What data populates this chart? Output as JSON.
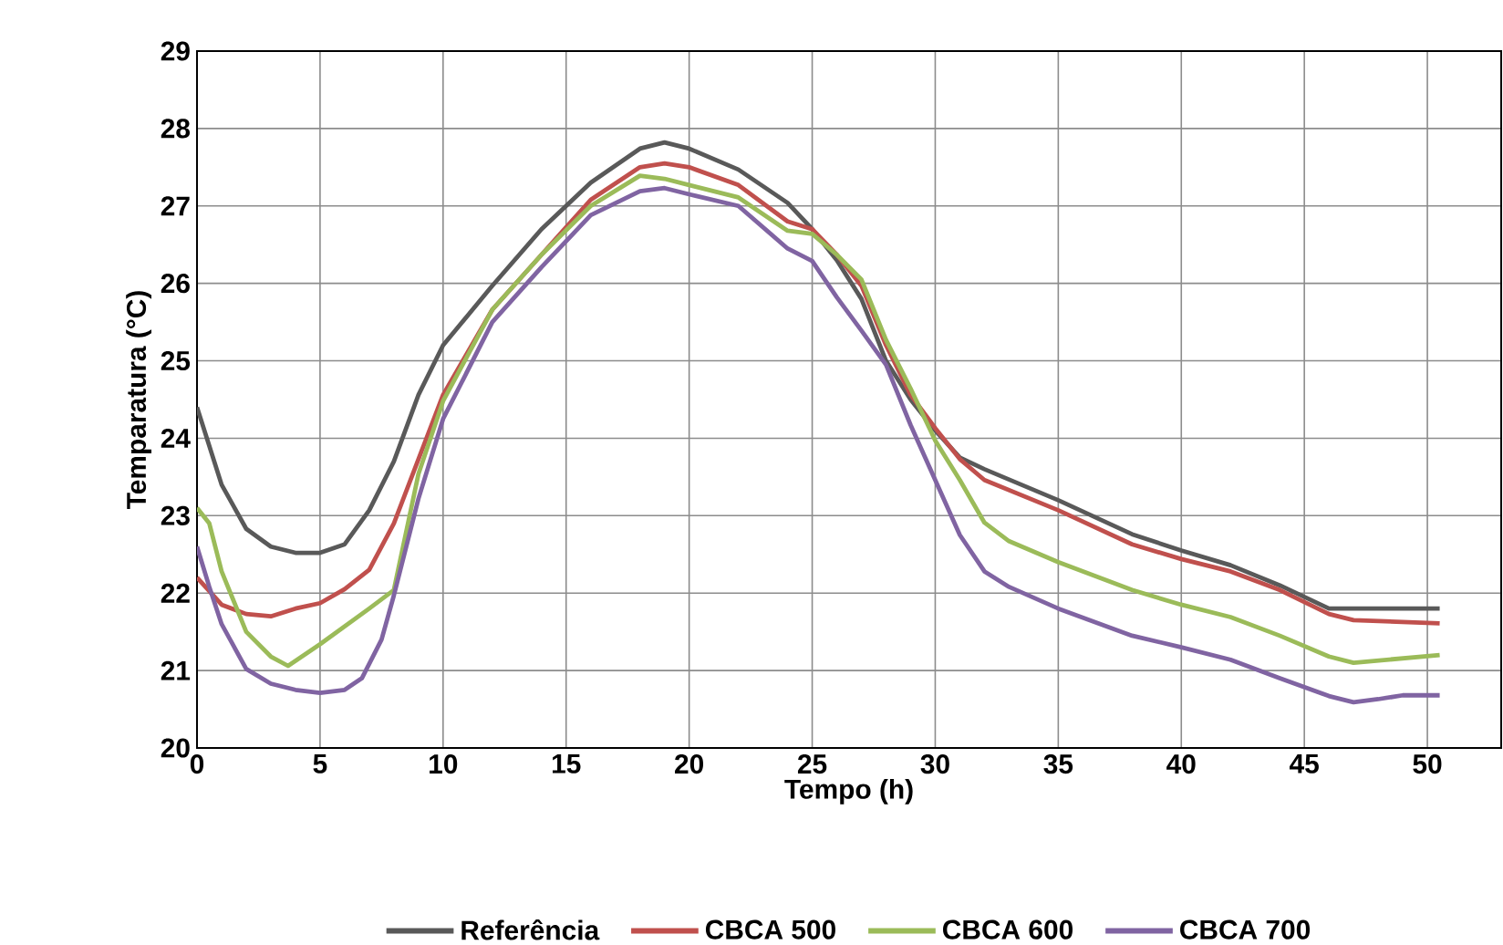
{
  "chart_data": {
    "type": "line",
    "xlabel": "Tempo (h)",
    "ylabel": "Temparatura (°C)",
    "xlim": [
      0,
      53
    ],
    "ylim": [
      20,
      29
    ],
    "xticks": [
      0,
      5,
      10,
      15,
      20,
      25,
      30,
      35,
      40,
      45,
      50
    ],
    "yticks": [
      20,
      21,
      22,
      23,
      24,
      25,
      26,
      27,
      28,
      29
    ],
    "grid": true,
    "legend": "bottom",
    "series": [
      {
        "name": "Referência",
        "color": "#595959",
        "x": [
          0,
          1,
          2,
          3,
          4,
          5,
          6,
          7,
          8,
          9,
          10,
          12,
          14,
          16,
          18,
          19,
          20,
          22,
          24,
          25,
          26,
          27,
          28,
          29,
          30,
          31,
          32,
          35,
          38,
          40,
          42,
          44,
          46,
          47,
          50.5
        ],
        "values": [
          24.4,
          23.4,
          22.83,
          22.6,
          22.52,
          22.52,
          22.63,
          23.07,
          23.7,
          24.56,
          25.2,
          25.97,
          26.7,
          27.3,
          27.74,
          27.82,
          27.74,
          27.47,
          27.04,
          26.7,
          26.3,
          25.8,
          25.0,
          24.5,
          24.1,
          23.75,
          23.6,
          23.2,
          22.76,
          22.55,
          22.36,
          22.1,
          21.8,
          21.8,
          21.8
        ]
      },
      {
        "name": "CBCA 500",
        "color": "#c0504d",
        "x": [
          0,
          1,
          2,
          3,
          4,
          5,
          6,
          7,
          8,
          9,
          10,
          12,
          14,
          16,
          18,
          19,
          20,
          22,
          24,
          25,
          26,
          27,
          28,
          29,
          30,
          31,
          32,
          35,
          38,
          40,
          42,
          44,
          46,
          47,
          50.5
        ],
        "values": [
          22.2,
          21.85,
          21.73,
          21.7,
          21.8,
          21.87,
          22.05,
          22.3,
          22.9,
          23.73,
          24.56,
          25.66,
          26.37,
          27.08,
          27.5,
          27.55,
          27.5,
          27.27,
          26.8,
          26.7,
          26.37,
          25.97,
          25.2,
          24.56,
          24.13,
          23.73,
          23.46,
          23.07,
          22.63,
          22.44,
          22.28,
          22.04,
          21.73,
          21.65,
          21.61
        ]
      },
      {
        "name": "CBCA 600",
        "color": "#9bbb59",
        "x": [
          0,
          0.5,
          1,
          2,
          3,
          3.7,
          5,
          6,
          7,
          8,
          9,
          10,
          12,
          14,
          16,
          18,
          19,
          20,
          22,
          24,
          25,
          26,
          27,
          28,
          29,
          30,
          31,
          32,
          33,
          35,
          38,
          40,
          42,
          44,
          46,
          47,
          50.5
        ],
        "values": [
          23.1,
          22.9,
          22.28,
          21.5,
          21.18,
          21.06,
          21.34,
          21.57,
          21.8,
          22.04,
          23.54,
          24.48,
          25.66,
          26.37,
          27.0,
          27.39,
          27.35,
          27.27,
          27.11,
          26.68,
          26.64,
          26.37,
          26.05,
          25.27,
          24.64,
          23.97,
          23.46,
          22.91,
          22.67,
          22.4,
          22.04,
          21.85,
          21.69,
          21.45,
          21.18,
          21.1,
          21.2
        ]
      },
      {
        "name": "CBCA 700",
        "color": "#8064a2",
        "x": [
          0,
          0.5,
          1,
          2,
          3,
          4,
          5,
          6,
          6.7,
          7.5,
          8,
          9,
          10,
          12,
          14,
          16,
          18,
          19,
          20,
          22,
          24,
          25,
          26,
          27,
          28,
          29,
          30,
          31,
          32,
          33,
          35,
          38,
          40,
          42,
          44,
          46,
          47,
          48,
          49,
          50.5
        ],
        "values": [
          22.6,
          22.08,
          21.6,
          21.02,
          20.83,
          20.75,
          20.71,
          20.75,
          20.9,
          21.4,
          21.97,
          23.22,
          24.25,
          25.5,
          26.21,
          26.88,
          27.19,
          27.23,
          27.15,
          27.0,
          26.45,
          26.29,
          25.82,
          25.39,
          24.95,
          24.17,
          23.46,
          22.75,
          22.28,
          22.08,
          21.8,
          21.45,
          21.3,
          21.14,
          20.9,
          20.67,
          20.59,
          20.63,
          20.68,
          20.68
        ]
      }
    ]
  }
}
